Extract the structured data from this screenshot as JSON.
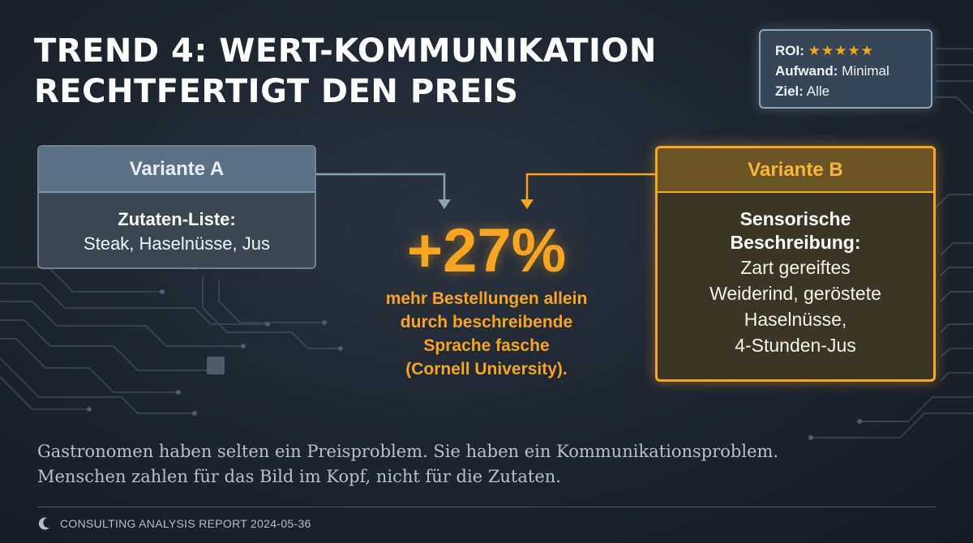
{
  "title": {
    "line1": "TREND 4: WERT-KOMMUNIKATION",
    "line2": "RECHTFERTIGT DEN PREIS"
  },
  "rating_box": {
    "roi_label": "ROI:",
    "roi_stars": "★★★★★",
    "aufwand_label": "Aufwand:",
    "aufwand_value": "Minimal",
    "ziel_label": "Ziel:",
    "ziel_value": "Alle"
  },
  "variant_a": {
    "title": "Variante A",
    "label": "Zutaten-Liste:",
    "text": "Steak, Haselnüsse, Jus"
  },
  "variant_b": {
    "title": "Variante B",
    "label_line1": "Sensorische",
    "label_line2": "Beschreibung:",
    "text_lines": [
      "Zart gereiftes",
      "Weiderind, geröstete",
      "Haselnüsse,",
      "4-Stunden-Jus"
    ]
  },
  "stat": {
    "value": "+27%",
    "lines": [
      "mehr Bestellungen allein",
      "durch beschreibende",
      "Sprache fasche",
      "(Cornell University)."
    ]
  },
  "quote": {
    "line1": "Gastronomen haben selten ein Preisproblem. Sie haben ein Kommunikationsproblem.",
    "line2": "Menschen zahlen für das Bild im Kopf, nicht für die Zutaten."
  },
  "footer": {
    "icon": "crescent-logo-icon",
    "text": "CONSULTING ANALYSIS REPORT 2024-05-36"
  },
  "colors": {
    "accent_orange": "#f7a51e",
    "variant_a_header": "#5d7184",
    "background": "#1e2630"
  }
}
